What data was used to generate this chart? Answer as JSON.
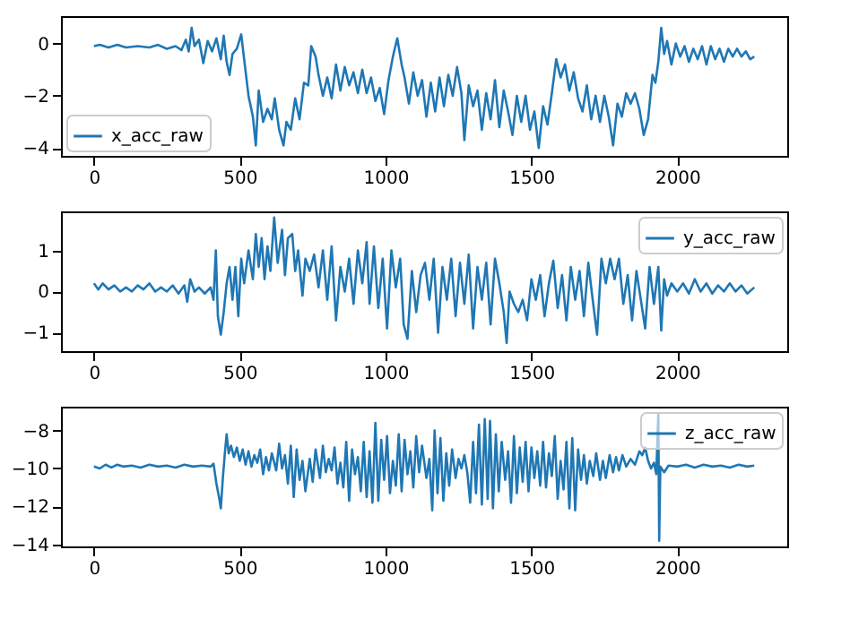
{
  "chart_data": [
    {
      "type": "line",
      "xlim": [
        -113,
        2377
      ],
      "xticks": [
        0,
        500,
        1000,
        1500,
        2000
      ],
      "ylim": [
        -4.3,
        1.05
      ],
      "yticks": [
        {
          "value": -4,
          "label": "−4"
        },
        {
          "value": -2,
          "label": "−2"
        },
        0
      ],
      "legend": "bottom left",
      "x": [
        0,
        20,
        50,
        80,
        110,
        150,
        190,
        220,
        250,
        280,
        300,
        315,
        325,
        335,
        345,
        360,
        375,
        390,
        405,
        420,
        435,
        445,
        455,
        465,
        475,
        490,
        505,
        515,
        530,
        545,
        555,
        565,
        580,
        595,
        610,
        620,
        635,
        650,
        660,
        675,
        690,
        705,
        720,
        735,
        745,
        760,
        770,
        785,
        800,
        815,
        830,
        845,
        860,
        875,
        890,
        905,
        920,
        935,
        950,
        965,
        980,
        995,
        1010,
        1025,
        1040,
        1055,
        1065,
        1080,
        1095,
        1110,
        1125,
        1140,
        1155,
        1170,
        1185,
        1200,
        1215,
        1230,
        1245,
        1260,
        1270,
        1285,
        1300,
        1315,
        1330,
        1345,
        1360,
        1375,
        1390,
        1405,
        1420,
        1435,
        1450,
        1465,
        1480,
        1495,
        1510,
        1525,
        1540,
        1555,
        1570,
        1585,
        1600,
        1615,
        1630,
        1645,
        1660,
        1675,
        1690,
        1705,
        1720,
        1735,
        1750,
        1765,
        1780,
        1795,
        1810,
        1825,
        1840,
        1855,
        1870,
        1885,
        1900,
        1915,
        1925,
        1935,
        1945,
        1955,
        1965,
        1980,
        1995,
        2010,
        2025,
        2040,
        2055,
        2070,
        2085,
        2100,
        2115,
        2130,
        2145,
        2160,
        2175,
        2190,
        2205,
        2220,
        2235,
        2250,
        2264
      ],
      "series": [
        {
          "name": "x_acc_raw",
          "color": "#1f77b4",
          "values": [
            -0.1,
            -0.05,
            -0.15,
            -0.05,
            -0.15,
            -0.1,
            -0.15,
            -0.05,
            -0.2,
            -0.1,
            -0.25,
            0.15,
            -0.3,
            0.6,
            -0.1,
            0.15,
            -0.75,
            0.1,
            -0.3,
            0.2,
            -0.6,
            0.3,
            -0.7,
            -1.2,
            -0.4,
            -0.2,
            0.35,
            -0.6,
            -2.0,
            -2.8,
            -3.9,
            -1.8,
            -3.0,
            -2.5,
            -2.9,
            -2.1,
            -3.3,
            -3.9,
            -3.0,
            -3.3,
            -2.1,
            -2.9,
            -1.5,
            -1.6,
            -0.1,
            -0.5,
            -1.2,
            -2.0,
            -1.3,
            -2.1,
            -0.8,
            -1.8,
            -0.9,
            -1.6,
            -1.1,
            -1.9,
            -1.0,
            -1.9,
            -1.3,
            -2.2,
            -1.7,
            -2.7,
            -1.4,
            -0.5,
            0.2,
            -0.8,
            -1.3,
            -2.3,
            -1.1,
            -2.0,
            -1.4,
            -2.8,
            -1.5,
            -2.6,
            -1.3,
            -2.4,
            -1.2,
            -2.0,
            -0.9,
            -1.9,
            -3.7,
            -1.6,
            -2.4,
            -1.8,
            -3.3,
            -1.9,
            -2.9,
            -1.4,
            -3.2,
            -1.8,
            -2.6,
            -3.5,
            -2.0,
            -3.0,
            -2.0,
            -3.3,
            -2.6,
            -4.0,
            -2.4,
            -3.1,
            -1.9,
            -0.6,
            -1.3,
            -0.8,
            -1.8,
            -1.1,
            -2.1,
            -2.6,
            -1.6,
            -2.9,
            -2.0,
            -3.0,
            -2.0,
            -2.8,
            -3.9,
            -2.3,
            -2.8,
            -1.9,
            -2.3,
            -1.9,
            -2.5,
            -3.5,
            -2.9,
            -1.2,
            -1.5,
            -0.7,
            0.6,
            -0.4,
            0.1,
            -0.8,
            0.0,
            -0.5,
            -0.1,
            -0.7,
            -0.2,
            -0.6,
            -0.1,
            -0.8,
            -0.1,
            -0.6,
            -0.2,
            -0.7,
            -0.2,
            -0.5,
            -0.2,
            -0.5,
            -0.3,
            -0.6,
            -0.5
          ]
        }
      ]
    },
    {
      "type": "line",
      "xlim": [
        -113,
        2377
      ],
      "xticks": [
        0,
        500,
        1000,
        1500,
        2000
      ],
      "ylim": [
        -1.45,
        1.95
      ],
      "yticks": [
        {
          "value": -1,
          "label": "−1"
        },
        0,
        1
      ],
      "legend": "top right",
      "x": [
        0,
        15,
        30,
        50,
        70,
        90,
        110,
        130,
        150,
        170,
        190,
        210,
        230,
        250,
        270,
        290,
        310,
        320,
        330,
        345,
        360,
        380,
        400,
        410,
        418,
        425,
        435,
        445,
        455,
        465,
        475,
        485,
        495,
        505,
        515,
        530,
        545,
        555,
        565,
        575,
        585,
        595,
        605,
        618,
        630,
        645,
        655,
        665,
        680,
        690,
        700,
        715,
        725,
        740,
        755,
        770,
        785,
        800,
        815,
        830,
        845,
        860,
        875,
        890,
        905,
        920,
        935,
        945,
        960,
        975,
        990,
        1005,
        1020,
        1035,
        1050,
        1062,
        1075,
        1090,
        1105,
        1120,
        1135,
        1150,
        1165,
        1180,
        1195,
        1210,
        1225,
        1240,
        1255,
        1270,
        1285,
        1300,
        1315,
        1330,
        1345,
        1360,
        1375,
        1390,
        1405,
        1415,
        1425,
        1440,
        1455,
        1470,
        1485,
        1500,
        1515,
        1530,
        1545,
        1560,
        1575,
        1590,
        1605,
        1620,
        1635,
        1650,
        1665,
        1680,
        1695,
        1710,
        1725,
        1740,
        1755,
        1770,
        1785,
        1800,
        1815,
        1830,
        1845,
        1860,
        1875,
        1890,
        1905,
        1920,
        1935,
        1945,
        1955,
        1965,
        1980,
        2000,
        2020,
        2040,
        2060,
        2080,
        2100,
        2120,
        2140,
        2160,
        2180,
        2200,
        2220,
        2240,
        2264
      ],
      "series": [
        {
          "name": "y_acc_raw",
          "color": "#1f77b4",
          "values": [
            0.2,
            0.05,
            0.2,
            0.05,
            0.15,
            0.0,
            0.1,
            0.0,
            0.15,
            0.05,
            0.2,
            0.0,
            0.1,
            0.0,
            0.15,
            -0.05,
            0.15,
            -0.25,
            0.3,
            0.0,
            0.1,
            -0.05,
            0.1,
            -0.2,
            1.0,
            -0.6,
            -1.05,
            -0.5,
            0.2,
            0.6,
            -0.2,
            0.6,
            -0.6,
            0.8,
            0.2,
            1.0,
            0.3,
            1.4,
            0.6,
            1.3,
            0.3,
            1.1,
            0.5,
            1.8,
            0.7,
            1.5,
            0.4,
            1.3,
            1.4,
            0.5,
            1.0,
            -0.1,
            0.8,
            0.5,
            0.9,
            0.1,
            1.0,
            -0.2,
            1.1,
            -0.7,
            0.6,
            0.0,
            0.8,
            -0.3,
            1.0,
            0.2,
            1.2,
            -0.3,
            1.1,
            -0.4,
            0.8,
            -0.9,
            1.0,
            0.1,
            0.8,
            -0.8,
            -1.15,
            0.5,
            -0.5,
            0.4,
            0.7,
            -0.2,
            0.8,
            -1.0,
            0.6,
            -0.2,
            0.8,
            -0.6,
            0.7,
            -0.3,
            0.9,
            -0.9,
            0.6,
            -0.2,
            0.7,
            -0.8,
            0.8,
            0.2,
            -0.5,
            -1.25,
            0.0,
            -0.3,
            -0.5,
            -0.2,
            -0.7,
            0.3,
            -0.2,
            0.4,
            -0.6,
            0.2,
            0.75,
            -0.4,
            0.4,
            -0.7,
            0.6,
            -0.2,
            0.5,
            -0.6,
            0.7,
            -0.2,
            -1.05,
            0.8,
            0.2,
            0.8,
            0.3,
            0.8,
            -0.3,
            0.4,
            -0.7,
            0.5,
            -0.2,
            -0.9,
            0.6,
            -0.3,
            0.6,
            -0.95,
            0.3,
            -0.1,
            0.2,
            0.0,
            0.2,
            -0.05,
            0.3,
            0.0,
            0.2,
            -0.05,
            0.15,
            0.0,
            0.2,
            0.0,
            0.15,
            -0.05,
            0.1
          ]
        }
      ]
    },
    {
      "type": "line",
      "xlim": [
        -113,
        2377
      ],
      "xticks": [
        0,
        500,
        1000,
        1500,
        2000
      ],
      "ylim": [
        -14.1,
        -6.75
      ],
      "yticks": [
        {
          "value": -14,
          "label": "−14"
        },
        {
          "value": -12,
          "label": "−12"
        },
        {
          "value": -10,
          "label": "−10"
        },
        {
          "value": -8,
          "label": "−8"
        }
      ],
      "legend": "top right",
      "x": [
        0,
        20,
        40,
        60,
        80,
        100,
        130,
        160,
        190,
        220,
        250,
        280,
        310,
        340,
        370,
        400,
        410,
        420,
        430,
        435,
        442,
        450,
        455,
        462,
        470,
        480,
        490,
        500,
        510,
        520,
        530,
        540,
        550,
        560,
        570,
        580,
        590,
        600,
        610,
        625,
        635,
        645,
        655,
        665,
        675,
        685,
        695,
        705,
        715,
        725,
        740,
        750,
        760,
        775,
        785,
        795,
        805,
        815,
        825,
        835,
        845,
        855,
        865,
        875,
        885,
        895,
        905,
        915,
        925,
        935,
        945,
        955,
        965,
        975,
        985,
        995,
        1005,
        1015,
        1025,
        1035,
        1045,
        1055,
        1065,
        1075,
        1085,
        1095,
        1105,
        1115,
        1125,
        1140,
        1150,
        1160,
        1168,
        1178,
        1188,
        1198,
        1208,
        1218,
        1228,
        1240,
        1250,
        1260,
        1270,
        1280,
        1290,
        1300,
        1310,
        1320,
        1330,
        1340,
        1350,
        1358,
        1368,
        1378,
        1388,
        1398,
        1410,
        1420,
        1430,
        1440,
        1450,
        1460,
        1470,
        1480,
        1490,
        1500,
        1510,
        1520,
        1530,
        1540,
        1550,
        1560,
        1570,
        1580,
        1590,
        1600,
        1610,
        1620,
        1630,
        1640,
        1650,
        1660,
        1670,
        1680,
        1690,
        1700,
        1712,
        1722,
        1735,
        1745,
        1755,
        1768,
        1780,
        1790,
        1800,
        1812,
        1825,
        1840,
        1855,
        1870,
        1880,
        1890,
        1900,
        1910,
        1920,
        1928,
        1935,
        1938,
        1942,
        1955,
        1970,
        2000,
        2030,
        2060,
        2090,
        2120,
        2150,
        2180,
        2210,
        2240,
        2264
      ],
      "series": [
        {
          "name": "z_acc_raw",
          "color": "#1f77b4",
          "values": [
            -9.9,
            -10.0,
            -9.8,
            -9.95,
            -9.8,
            -9.9,
            -9.85,
            -9.95,
            -9.8,
            -9.9,
            -9.85,
            -9.95,
            -9.8,
            -9.9,
            -9.85,
            -9.9,
            -9.75,
            -10.8,
            -11.6,
            -12.1,
            -10.5,
            -9.0,
            -8.2,
            -9.2,
            -8.8,
            -9.4,
            -8.9,
            -9.6,
            -9.0,
            -9.8,
            -9.1,
            -9.9,
            -9.3,
            -9.7,
            -9.0,
            -10.3,
            -9.4,
            -10.1,
            -9.2,
            -10.1,
            -8.7,
            -10.0,
            -9.3,
            -10.8,
            -8.8,
            -11.5,
            -9.0,
            -10.6,
            -9.6,
            -11.2,
            -9.5,
            -10.7,
            -9.0,
            -10.5,
            -8.8,
            -10.2,
            -9.5,
            -10.1,
            -8.9,
            -10.8,
            -9.7,
            -11.0,
            -8.6,
            -11.7,
            -9.0,
            -10.3,
            -9.4,
            -11.2,
            -8.6,
            -11.5,
            -9.1,
            -11.8,
            -7.6,
            -11.7,
            -8.5,
            -10.6,
            -8.3,
            -11.3,
            -9.6,
            -10.9,
            -8.2,
            -11.2,
            -8.5,
            -10.3,
            -9.1,
            -11.0,
            -8.3,
            -10.2,
            -8.8,
            -10.5,
            -9.5,
            -12.2,
            -8.0,
            -11.3,
            -8.4,
            -11.7,
            -9.2,
            -10.9,
            -9.0,
            -10.5,
            -9.5,
            -10.0,
            -9.3,
            -10.2,
            -11.8,
            -8.6,
            -11.3,
            -7.7,
            -11.9,
            -7.4,
            -11.6,
            -7.5,
            -12.1,
            -8.2,
            -11.2,
            -8.6,
            -10.6,
            -9.1,
            -11.8,
            -8.3,
            -11.3,
            -8.9,
            -10.7,
            -8.6,
            -11.2,
            -8.9,
            -10.5,
            -9.1,
            -10.9,
            -8.6,
            -11.0,
            -9.2,
            -10.4,
            -8.3,
            -11.6,
            -9.6,
            -11.1,
            -8.6,
            -12.1,
            -8.4,
            -12.2,
            -9.0,
            -10.6,
            -9.3,
            -10.8,
            -9.6,
            -10.4,
            -9.2,
            -10.6,
            -9.6,
            -10.5,
            -9.3,
            -10.2,
            -9.4,
            -10.1,
            -9.3,
            -9.9,
            -9.5,
            -9.8,
            -9.1,
            -9.3,
            -8.9,
            -9.6,
            -10.0,
            -9.7,
            -10.3,
            -7.1,
            -13.8,
            -9.9,
            -10.2,
            -9.85,
            -9.9,
            -9.8,
            -9.95,
            -9.8,
            -9.9,
            -9.85,
            -9.95,
            -9.8,
            -9.9,
            -9.85
          ]
        }
      ]
    }
  ]
}
